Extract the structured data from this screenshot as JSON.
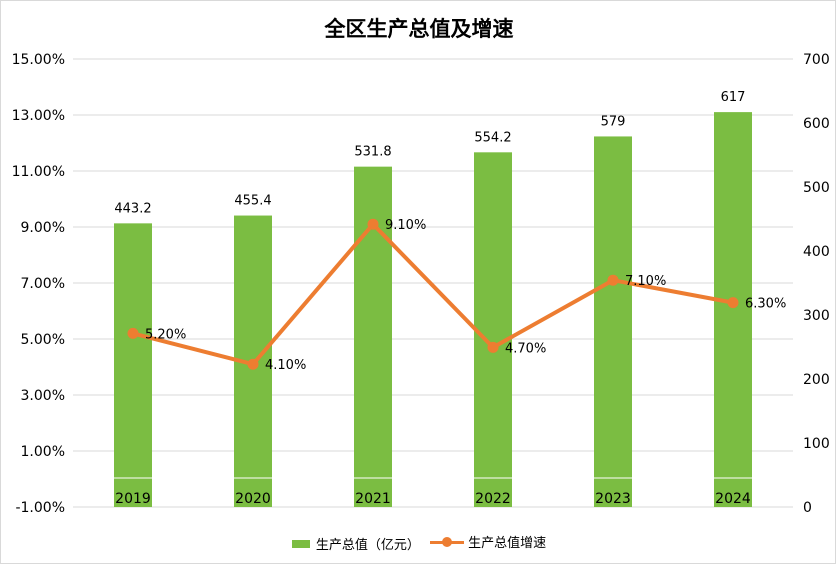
{
  "chart_data": {
    "type": "bar",
    "title": "全区生产总值及增速",
    "categories": [
      "2019",
      "2020",
      "2021",
      "2022",
      "2023",
      "2024"
    ],
    "series": [
      {
        "name": "生产总值（亿元）",
        "type": "bar",
        "axis": "right",
        "values": [
          443.2,
          455.4,
          531.8,
          554.2,
          579,
          617
        ],
        "labels": [
          "443.2",
          "455.4",
          "531.8",
          "554.2",
          "579",
          "617"
        ],
        "color": "#7bbd42"
      },
      {
        "name": "生产总值增速",
        "type": "line",
        "axis": "left",
        "values": [
          5.2,
          4.1,
          9.1,
          4.7,
          7.1,
          6.3
        ],
        "labels": [
          "5.20%",
          "4.10%",
          "9.10%",
          "4.70%",
          "7.10%",
          "6.30%"
        ],
        "color": "#ed7d31"
      }
    ],
    "y_left": {
      "ylim": [
        -1,
        15
      ],
      "ticks": [
        15,
        13,
        11,
        9,
        7,
        5,
        3,
        1,
        -1
      ],
      "tick_labels": [
        "15.00%",
        "13.00%",
        "11.00%",
        "9.00%",
        "7.00%",
        "5.00%",
        "3.00%",
        "1.00%",
        "-1.00%"
      ]
    },
    "y_right": {
      "ylim": [
        0,
        700
      ],
      "ticks": [
        700,
        600,
        500,
        400,
        300,
        200,
        100,
        0
      ],
      "tick_labels": [
        "700",
        "600",
        "500",
        "400",
        "300",
        "200",
        "100",
        "0"
      ]
    },
    "grid": true,
    "legend_position": "bottom",
    "grid_color": "#d9d9d9"
  }
}
